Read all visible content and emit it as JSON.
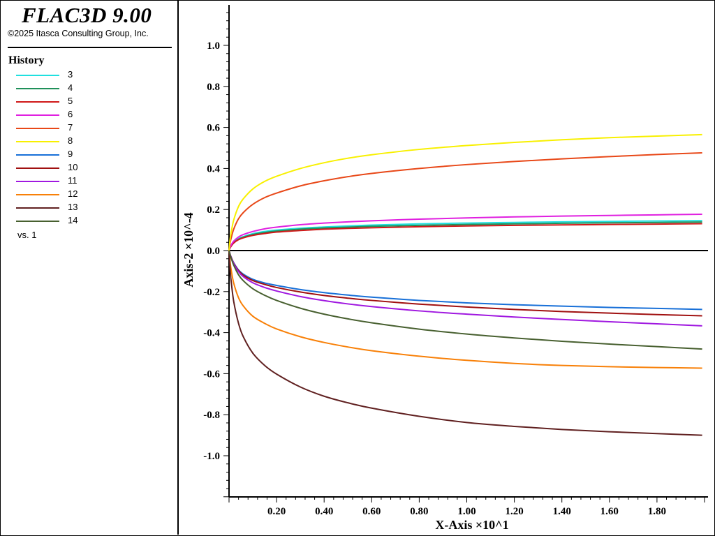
{
  "app": {
    "title": "FLAC3D 9.00",
    "copyright": "©2025 Itasca Consulting Group, Inc."
  },
  "legend": {
    "title": "History",
    "vs_label": "vs. 1",
    "items": [
      {
        "label": "3",
        "color": "#20e0e0"
      },
      {
        "label": "4",
        "color": "#20905a"
      },
      {
        "label": "5",
        "color": "#d01818"
      },
      {
        "label": "6",
        "color": "#e020e0"
      },
      {
        "label": "7",
        "color": "#e84818"
      },
      {
        "label": "8",
        "color": "#f8f000"
      },
      {
        "label": "9",
        "color": "#1870d8"
      },
      {
        "label": "10",
        "color": "#a01010"
      },
      {
        "label": "11",
        "color": "#a018e0"
      },
      {
        "label": "12",
        "color": "#f88008"
      },
      {
        "label": "13",
        "color": "#602020"
      },
      {
        "label": "14",
        "color": "#486030"
      }
    ]
  },
  "chart_data": {
    "type": "line",
    "xlabel": "X-Axis ×10^1",
    "ylabel": "Axis-2 ×10^-4",
    "xlim": [
      0,
      2.0
    ],
    "ylim": [
      -1.2,
      1.2
    ],
    "x_ticks": [
      0.2,
      0.4,
      0.6,
      0.8,
      1.0,
      1.2,
      1.4,
      1.6,
      1.8
    ],
    "x_tick_labels": [
      "0.20",
      "0.40",
      "0.60",
      "0.80",
      "1.00",
      "1.20",
      "1.40",
      "1.60",
      "1.80"
    ],
    "y_ticks": [
      1.0,
      0.8,
      0.6,
      0.4,
      0.2,
      0.0,
      -0.2,
      -0.4,
      -0.6,
      -0.8,
      -1.0
    ],
    "y_tick_labels": [
      "1.0",
      "0.8",
      "0.6",
      "0.4",
      "0.2",
      "0.0",
      "-0.2",
      "-0.4",
      "-0.6",
      "-0.8",
      "-1.0"
    ],
    "x": [
      0,
      0.005,
      0.01,
      0.02,
      0.04,
      0.06,
      0.1,
      0.15,
      0.2,
      0.3,
      0.4,
      0.5,
      0.6,
      0.8,
      1.0,
      1.2,
      1.4,
      1.6,
      1.8,
      1.99
    ],
    "series": [
      {
        "name": "3",
        "color": "#20e0e0",
        "values": [
          0,
          0.015,
          0.025,
          0.04,
          0.058,
          0.068,
          0.082,
          0.093,
          0.1,
          0.109,
          0.115,
          0.12,
          0.124,
          0.13,
          0.134,
          0.137,
          0.14,
          0.142,
          0.144,
          0.146
        ]
      },
      {
        "name": "4",
        "color": "#20905a",
        "values": [
          0,
          0.015,
          0.024,
          0.038,
          0.055,
          0.065,
          0.078,
          0.088,
          0.095,
          0.104,
          0.11,
          0.114,
          0.118,
          0.123,
          0.127,
          0.13,
          0.133,
          0.135,
          0.137,
          0.139
        ]
      },
      {
        "name": "5",
        "color": "#d01818",
        "values": [
          0,
          0.014,
          0.023,
          0.037,
          0.053,
          0.062,
          0.074,
          0.083,
          0.09,
          0.098,
          0.104,
          0.108,
          0.111,
          0.116,
          0.12,
          0.123,
          0.125,
          0.127,
          0.129,
          0.131
        ]
      },
      {
        "name": "6",
        "color": "#e020e0",
        "values": [
          0,
          0.018,
          0.029,
          0.046,
          0.066,
          0.078,
          0.093,
          0.106,
          0.114,
          0.126,
          0.134,
          0.14,
          0.145,
          0.153,
          0.159,
          0.164,
          0.168,
          0.171,
          0.174,
          0.177
        ]
      },
      {
        "name": "7",
        "color": "#e84818",
        "values": [
          0,
          0.04,
          0.065,
          0.105,
          0.155,
          0.185,
          0.225,
          0.258,
          0.28,
          0.315,
          0.34,
          0.36,
          0.376,
          0.4,
          0.419,
          0.434,
          0.447,
          0.458,
          0.468,
          0.476
        ]
      },
      {
        "name": "8",
        "color": "#f8f000",
        "values": [
          0,
          0.06,
          0.095,
          0.15,
          0.215,
          0.252,
          0.3,
          0.337,
          0.362,
          0.4,
          0.428,
          0.45,
          0.467,
          0.493,
          0.512,
          0.527,
          0.54,
          0.55,
          0.558,
          0.565
        ]
      },
      {
        "name": "9",
        "color": "#1870d8",
        "values": [
          0,
          -0.02,
          -0.035,
          -0.06,
          -0.095,
          -0.115,
          -0.14,
          -0.158,
          -0.17,
          -0.19,
          -0.205,
          -0.217,
          -0.227,
          -0.243,
          -0.255,
          -0.264,
          -0.271,
          -0.277,
          -0.282,
          -0.287
        ]
      },
      {
        "name": "10",
        "color": "#a01010",
        "values": [
          0,
          -0.02,
          -0.035,
          -0.062,
          -0.098,
          -0.12,
          -0.146,
          -0.165,
          -0.18,
          -0.202,
          -0.219,
          -0.232,
          -0.243,
          -0.261,
          -0.275,
          -0.287,
          -0.297,
          -0.305,
          -0.312,
          -0.318
        ]
      },
      {
        "name": "11",
        "color": "#a018e0",
        "values": [
          0,
          -0.02,
          -0.036,
          -0.064,
          -0.103,
          -0.127,
          -0.157,
          -0.18,
          -0.197,
          -0.224,
          -0.244,
          -0.26,
          -0.273,
          -0.294,
          -0.31,
          -0.324,
          -0.336,
          -0.347,
          -0.357,
          -0.367
        ]
      },
      {
        "name": "12",
        "color": "#f88008",
        "values": [
          0,
          -0.06,
          -0.1,
          -0.16,
          -0.23,
          -0.27,
          -0.32,
          -0.355,
          -0.382,
          -0.42,
          -0.448,
          -0.47,
          -0.488,
          -0.515,
          -0.535,
          -0.55,
          -0.56,
          -0.566,
          -0.57,
          -0.573
        ]
      },
      {
        "name": "13",
        "color": "#602020",
        "values": [
          0,
          -0.1,
          -0.16,
          -0.25,
          -0.355,
          -0.42,
          -0.5,
          -0.56,
          -0.602,
          -0.665,
          -0.71,
          -0.742,
          -0.768,
          -0.808,
          -0.838,
          -0.857,
          -0.872,
          -0.883,
          -0.892,
          -0.9
        ]
      },
      {
        "name": "14",
        "color": "#486030",
        "values": [
          0,
          -0.022,
          -0.04,
          -0.072,
          -0.118,
          -0.147,
          -0.186,
          -0.218,
          -0.243,
          -0.281,
          -0.31,
          -0.333,
          -0.352,
          -0.383,
          -0.407,
          -0.426,
          -0.442,
          -0.456,
          -0.468,
          -0.48
        ]
      }
    ]
  }
}
